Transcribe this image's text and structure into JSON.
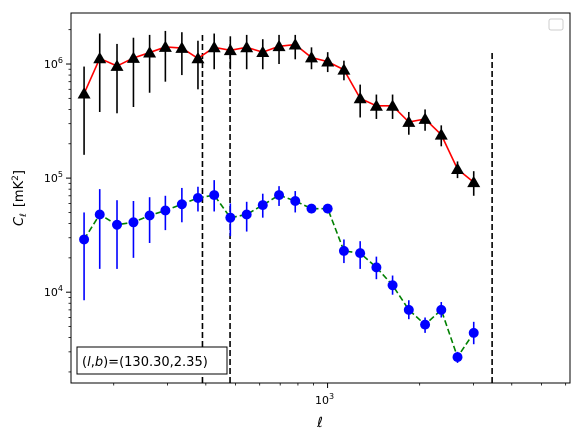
{
  "chart_data": {
    "type": "line",
    "title": "",
    "xlabel": "ℓ",
    "ylabel_main": "C",
    "ylabel_sub": "ℓ",
    "ylabel_unit": "[mK",
    "ylabel_unit_sup": "2",
    "ylabel_unit_close": "]",
    "x_scale": "log",
    "y_scale": "log",
    "xlim": [
      145,
      6200
    ],
    "ylim": [
      1600,
      2800000
    ],
    "x_ticks": [
      {
        "value": 1000,
        "base": "10",
        "exp": "3"
      }
    ],
    "y_ticks": [
      {
        "value": 10000,
        "base": "10",
        "exp": "4"
      },
      {
        "value": 100000,
        "base": "10",
        "exp": "5"
      },
      {
        "value": 1000000,
        "base": "10",
        "exp": "6"
      }
    ],
    "annotation_box": {
      "prefix": "(",
      "l": "l",
      "sep": ",",
      "b": "b",
      "suffix": ")=(130.30,2.35)"
    },
    "vlines": [
      {
        "x": 390,
        "ymin": 1600,
        "ymax": 1900000
      },
      {
        "x": 480,
        "ymin": 1600,
        "ymax": 1600000
      },
      {
        "x": 3450,
        "ymin": 1600,
        "ymax": 1300000
      }
    ],
    "legend": {
      "placement": "top-right",
      "entries": []
    },
    "series": [
      {
        "marker": "triangle",
        "color": "#000000",
        "line_color": "#ff0000",
        "line_style": "solid",
        "errbar_color": "#000000",
        "x": [
          160,
          180,
          205,
          232,
          262,
          295,
          334,
          377,
          426,
          481,
          544,
          614,
          694,
          784,
          886,
          1001,
          1131,
          1278,
          1444,
          1631,
          1843,
          2083,
          2353,
          2659,
          3004,
          3394,
          3835,
          4333
        ],
        "y": [
          550000,
          1120000,
          960000,
          1130000,
          1260000,
          1410000,
          1380000,
          1120000,
          1400000,
          1320000,
          1400000,
          1270000,
          1430000,
          1480000,
          1140000,
          1050000,
          890000,
          500000,
          430000,
          430000,
          310000,
          330000,
          240000,
          120000,
          92000,
          0,
          0,
          0
        ],
        "lo": [
          160000,
          380000,
          370000,
          420000,
          560000,
          700000,
          800000,
          600000,
          900000,
          900000,
          900000,
          900000,
          1000000,
          1100000,
          900000,
          850000,
          720000,
          340000,
          330000,
          330000,
          240000,
          260000,
          190000,
          100000,
          70000,
          0,
          0,
          0
        ],
        "hi": [
          950000,
          1850000,
          1500000,
          1700000,
          1800000,
          1950000,
          1900000,
          1600000,
          1850000,
          1750000,
          1800000,
          1650000,
          1800000,
          1800000,
          1400000,
          1270000,
          1070000,
          660000,
          540000,
          540000,
          380000,
          400000,
          290000,
          140000,
          115000,
          0,
          0,
          0
        ]
      },
      {
        "marker": "circle",
        "color": "#0000ff",
        "line_color": "#008000",
        "line_style": "dashed",
        "errbar_color": "#0000ff",
        "x": [
          160,
          180,
          205,
          232,
          262,
          295,
          334,
          377,
          426,
          481,
          544,
          614,
          694,
          784,
          886,
          1001,
          1131,
          1278,
          1444,
          1631,
          1843,
          2083,
          2353,
          2659,
          3004,
          3394,
          3835,
          4333
        ],
        "y": [
          29000,
          48000,
          39000,
          41000,
          47000,
          52000,
          59000,
          67000,
          71000,
          45000,
          48000,
          58000,
          71000,
          63000,
          54000,
          54000,
          23000,
          22000,
          16500,
          11500,
          7000,
          5200,
          7000,
          2700,
          4400,
          0,
          0,
          0
        ],
        "lo": [
          8500,
          16000,
          16000,
          20000,
          27000,
          35000,
          41000,
          51000,
          51000,
          31000,
          34000,
          45000,
          57000,
          50000,
          0,
          0,
          18000,
          16000,
          13000,
          9500,
          5800,
          4400,
          6000,
          2400,
          3500,
          0,
          0,
          0
        ],
        "hi": [
          50000,
          80000,
          64000,
          63000,
          68000,
          70000,
          82000,
          84000,
          96000,
          60000,
          62000,
          73000,
          85000,
          77000,
          0,
          0,
          29000,
          28000,
          20500,
          14000,
          8500,
          6000,
          8200,
          3000,
          5500,
          0,
          0,
          0
        ]
      }
    ]
  }
}
